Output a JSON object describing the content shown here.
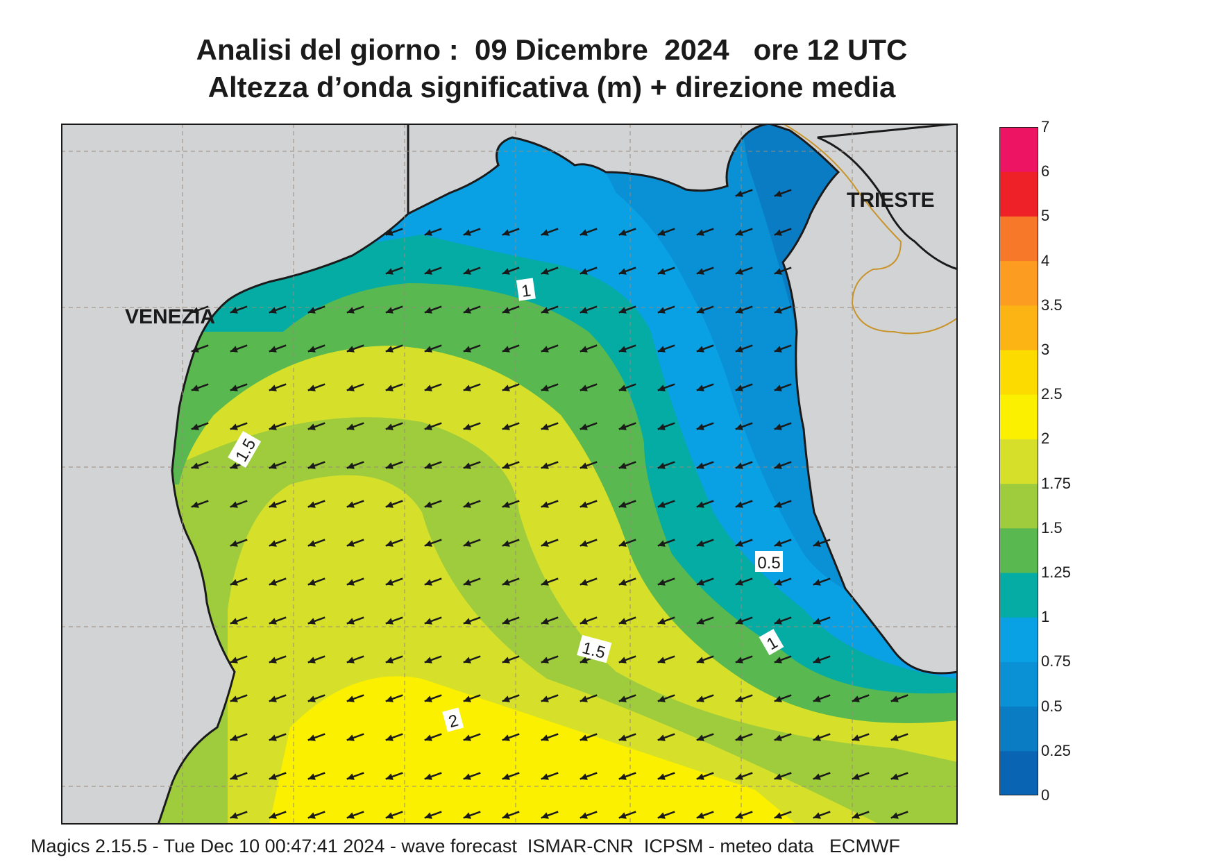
{
  "title": {
    "line1": "Analisi del giorno :  09 Dicembre  2024   ore 12 UTC",
    "line2": "Altezza d’onda significativa (m) + direzione media"
  },
  "cities": {
    "venezia": "VENEZIA",
    "trieste": "TRIESTE"
  },
  "contour_labels": [
    "1",
    "1.5",
    "1.5",
    "2",
    "0.5",
    "1"
  ],
  "legend": {
    "levels": [
      "0",
      "0.25",
      "0.5",
      "0.75",
      "1",
      "1.25",
      "1.5",
      "1.75",
      "2",
      "2.5",
      "3",
      "3.5",
      "4",
      "5",
      "6",
      "7"
    ],
    "colors": [
      "#0a64b4",
      "#0a7cc4",
      "#0a90d4",
      "#0aa0e4",
      "#05aca4",
      "#5ab850",
      "#9ecc3c",
      "#d6e02a",
      "#fbf000",
      "#fcdc00",
      "#fcb414",
      "#fc9c20",
      "#f8782a",
      "#ee2028",
      "#ee1464"
    ]
  },
  "footer": "Magics 2.15.5 - Tue Dec 10 00:47:41 2024 - wave forecast  ISMAR-CNR  ICPSM - meteo data   ECMWF",
  "colors": {
    "land": "#d2d3d5",
    "coast": "#1a1a1a",
    "border": "#c8942a",
    "arrow": "#1a1a1a",
    "grid": "#9a8a7a"
  },
  "arrow_direction_deg": 200
}
